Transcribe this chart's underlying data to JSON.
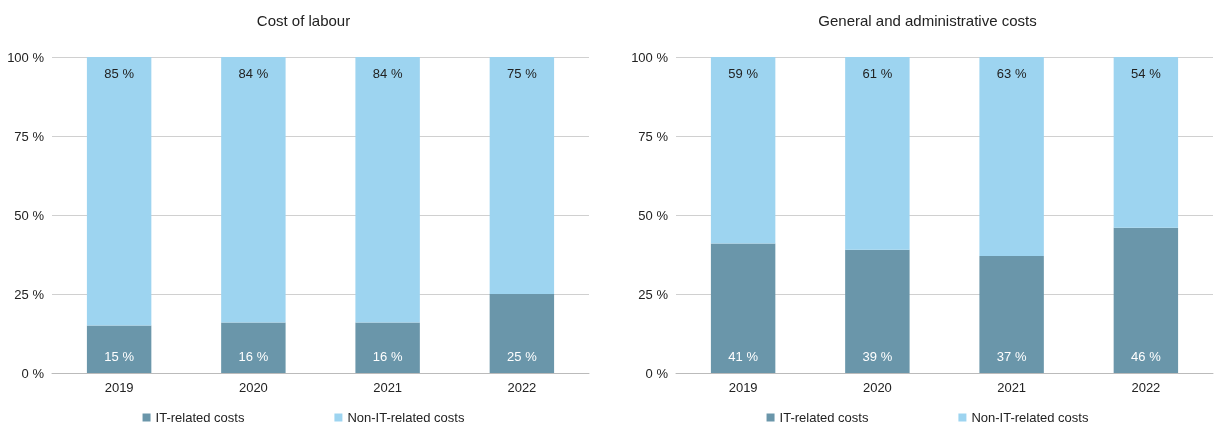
{
  "chart_data": [
    {
      "type": "bar",
      "title": "Cost of labour",
      "categories": [
        "2019",
        "2020",
        "2021",
        "2022"
      ],
      "stacked": true,
      "ylim": [
        0,
        100
      ],
      "yticks": [
        {
          "value": 0,
          "label": "0 %"
        },
        {
          "value": 25,
          "label": "25 %"
        },
        {
          "value": 50,
          "label": "50 %"
        },
        {
          "value": 75,
          "label": "75 %"
        },
        {
          "value": 100,
          "label": "100 %"
        }
      ],
      "grid": "y",
      "legend": "bottom",
      "series": [
        {
          "name": "IT-related costs",
          "color": "#6a96aa",
          "values": [
            15,
            16,
            16,
            25
          ],
          "value_labels": [
            "15 %",
            "16 %",
            "16 %",
            "25 %"
          ]
        },
        {
          "name": "Non-IT-related costs",
          "color": "#9dd4f0",
          "values": [
            85,
            84,
            84,
            75
          ],
          "value_labels": [
            "85 %",
            "84 %",
            "84 %",
            "75 %"
          ]
        }
      ]
    },
    {
      "type": "bar",
      "title": "General and administrative costs",
      "categories": [
        "2019",
        "2020",
        "2021",
        "2022"
      ],
      "stacked": true,
      "ylim": [
        0,
        100
      ],
      "yticks": [
        {
          "value": 0,
          "label": "0 %"
        },
        {
          "value": 25,
          "label": "25 %"
        },
        {
          "value": 50,
          "label": "50 %"
        },
        {
          "value": 75,
          "label": "75 %"
        },
        {
          "value": 100,
          "label": "100 %"
        }
      ],
      "grid": "y",
      "legend": "bottom",
      "series": [
        {
          "name": "IT-related costs",
          "color": "#6a96aa",
          "values": [
            41,
            39,
            37,
            46
          ],
          "value_labels": [
            "41 %",
            "39 %",
            "37 %",
            "46 %"
          ]
        },
        {
          "name": "Non-IT-related costs",
          "color": "#9dd4f0",
          "values": [
            59,
            61,
            63,
            54
          ],
          "value_labels": [
            "59 %",
            "61 %",
            "63 %",
            "54 %"
          ]
        }
      ]
    }
  ]
}
